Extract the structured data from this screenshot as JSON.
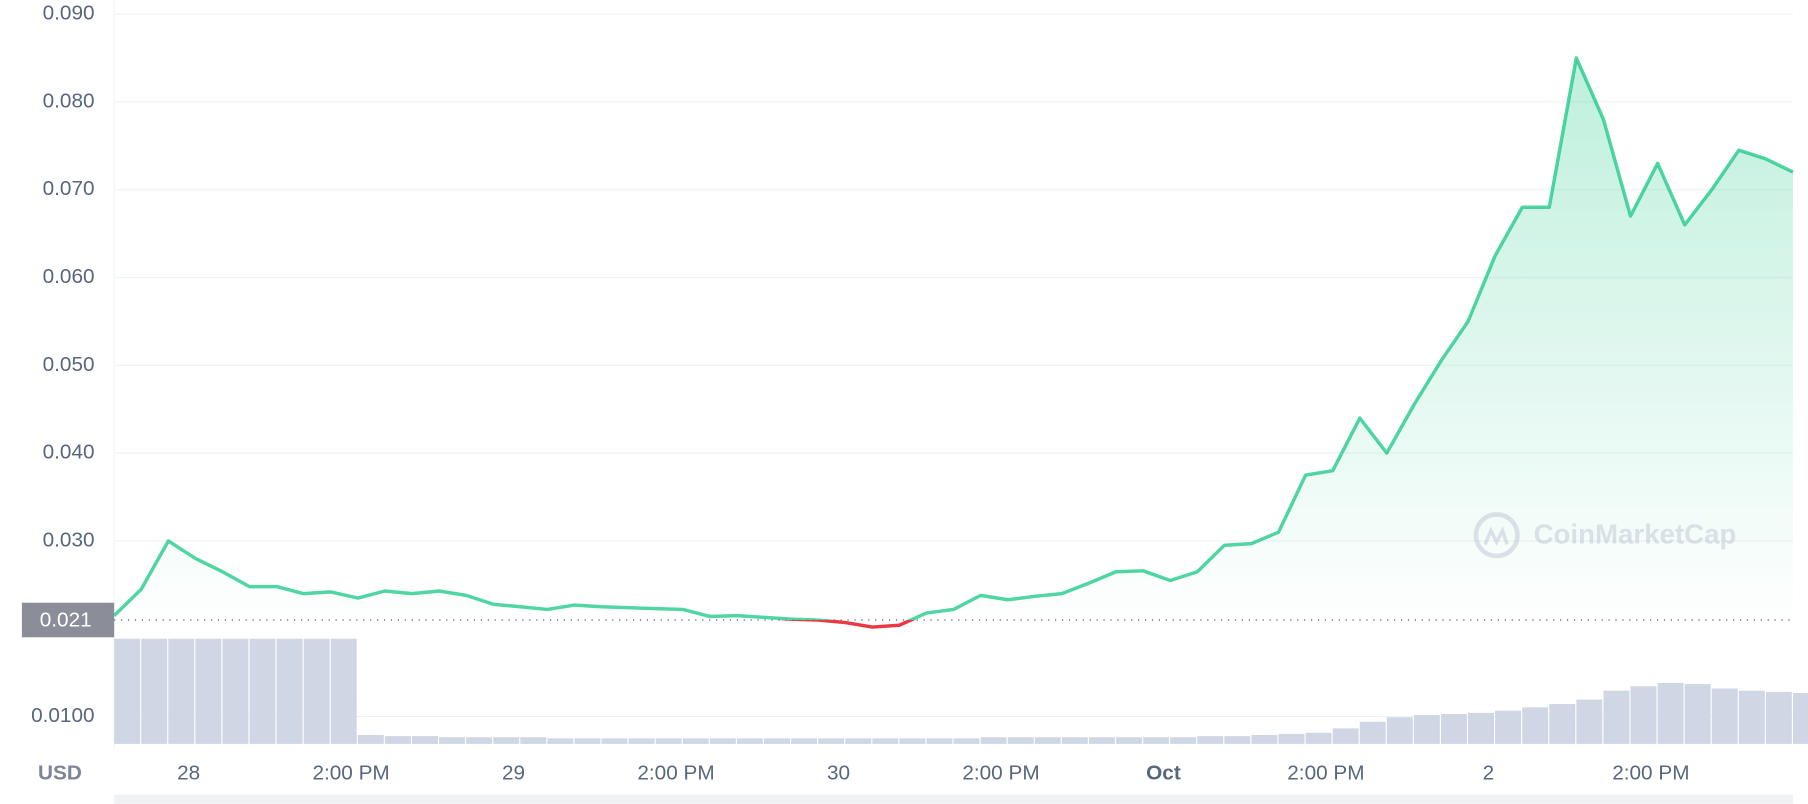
{
  "chart_data": {
    "type": "line",
    "currency": "USD",
    "watermark": "CoinMarketCap",
    "x": [
      0,
      2,
      4,
      6,
      8,
      10,
      12,
      14,
      16,
      18,
      20,
      22,
      24,
      26,
      28,
      30,
      32,
      34,
      36,
      38,
      40,
      42,
      44,
      46,
      48,
      50,
      52,
      54,
      56,
      58,
      60,
      62,
      64,
      66,
      68,
      70,
      72,
      74,
      76,
      78,
      80,
      82,
      84,
      86,
      88,
      90,
      92,
      94,
      96,
      98,
      100,
      102,
      104,
      106,
      108,
      110,
      112,
      114,
      116,
      118,
      120,
      122,
      124
    ],
    "series": [
      {
        "color": "#16c784",
        "values": [
          0.0215,
          0.0245,
          0.03,
          0.028,
          0.0265,
          0.0248,
          0.0248,
          0.024,
          0.0242,
          0.0235,
          0.0243,
          0.024,
          0.0243,
          0.0238,
          0.0228,
          0.0225,
          0.0222,
          0.0227,
          0.0225,
          0.0224,
          0.0223,
          0.0222,
          0.0214,
          0.0215,
          0.0213,
          0.0211,
          0.021,
          0.0207,
          0.0202,
          0.0204,
          0.0218,
          0.0222,
          0.0238,
          0.0233,
          0.0237,
          0.024,
          0.0252,
          0.0265,
          0.0266,
          0.0255,
          0.0265,
          0.0295,
          0.0297,
          0.031,
          0.0375,
          0.038,
          0.044,
          0.04,
          0.0455,
          0.0505,
          0.055,
          0.0625,
          0.068,
          0.068,
          0.085,
          0.078,
          0.067,
          0.073,
          0.066,
          0.07,
          0.0745,
          0.0735,
          0.072
        ]
      },
      {
        "color": "#cfd6e4",
        "axis": "y2",
        "values": [
          95,
          95,
          95,
          95,
          95,
          95,
          95,
          95,
          95,
          8,
          7,
          7,
          6,
          6,
          6,
          6,
          5,
          5,
          5,
          5,
          5,
          5,
          5,
          5,
          5,
          5,
          5,
          5,
          5,
          5,
          5,
          5,
          6,
          6,
          6,
          6,
          6,
          6,
          6,
          6,
          7,
          7,
          8,
          9,
          10,
          14,
          20,
          24,
          26,
          27,
          28,
          30,
          33,
          36,
          40,
          48,
          52,
          55,
          54,
          50,
          48,
          47,
          46
        ]
      }
    ],
    "reference_price": 0.021,
    "down_color": "#ea3943",
    "xlim": [
      0,
      124
    ],
    "xticks": [
      {
        "value": 5.5,
        "label": "28"
      },
      {
        "value": 17.5,
        "label": "2:00 PM"
      },
      {
        "value": 29.5,
        "label": "29"
      },
      {
        "value": 41.5,
        "label": "2:00 PM"
      },
      {
        "value": 53.5,
        "label": "30"
      },
      {
        "value": 65.5,
        "label": "2:00 PM"
      },
      {
        "value": 77.5,
        "label": "Oct"
      },
      {
        "value": 89.5,
        "label": "2:00 PM"
      },
      {
        "value": 101.5,
        "label": "2"
      },
      {
        "value": 113.5,
        "label": "2:00 PM"
      }
    ],
    "ylim": [
      0.0065,
      0.0905
    ],
    "yticks": [
      {
        "value": 0.01,
        "label": "0.0100"
      },
      {
        "value": 0.03,
        "label": "0.030"
      },
      {
        "value": 0.04,
        "label": "0.040"
      },
      {
        "value": 0.05,
        "label": "0.050"
      },
      {
        "value": 0.06,
        "label": "0.060"
      },
      {
        "value": 0.07,
        "label": "0.070"
      },
      {
        "value": 0.08,
        "label": "0.080"
      },
      {
        "value": 0.09,
        "label": "0.090"
      }
    ],
    "y2lim": [
      0,
      100
    ],
    "grid": true
  }
}
